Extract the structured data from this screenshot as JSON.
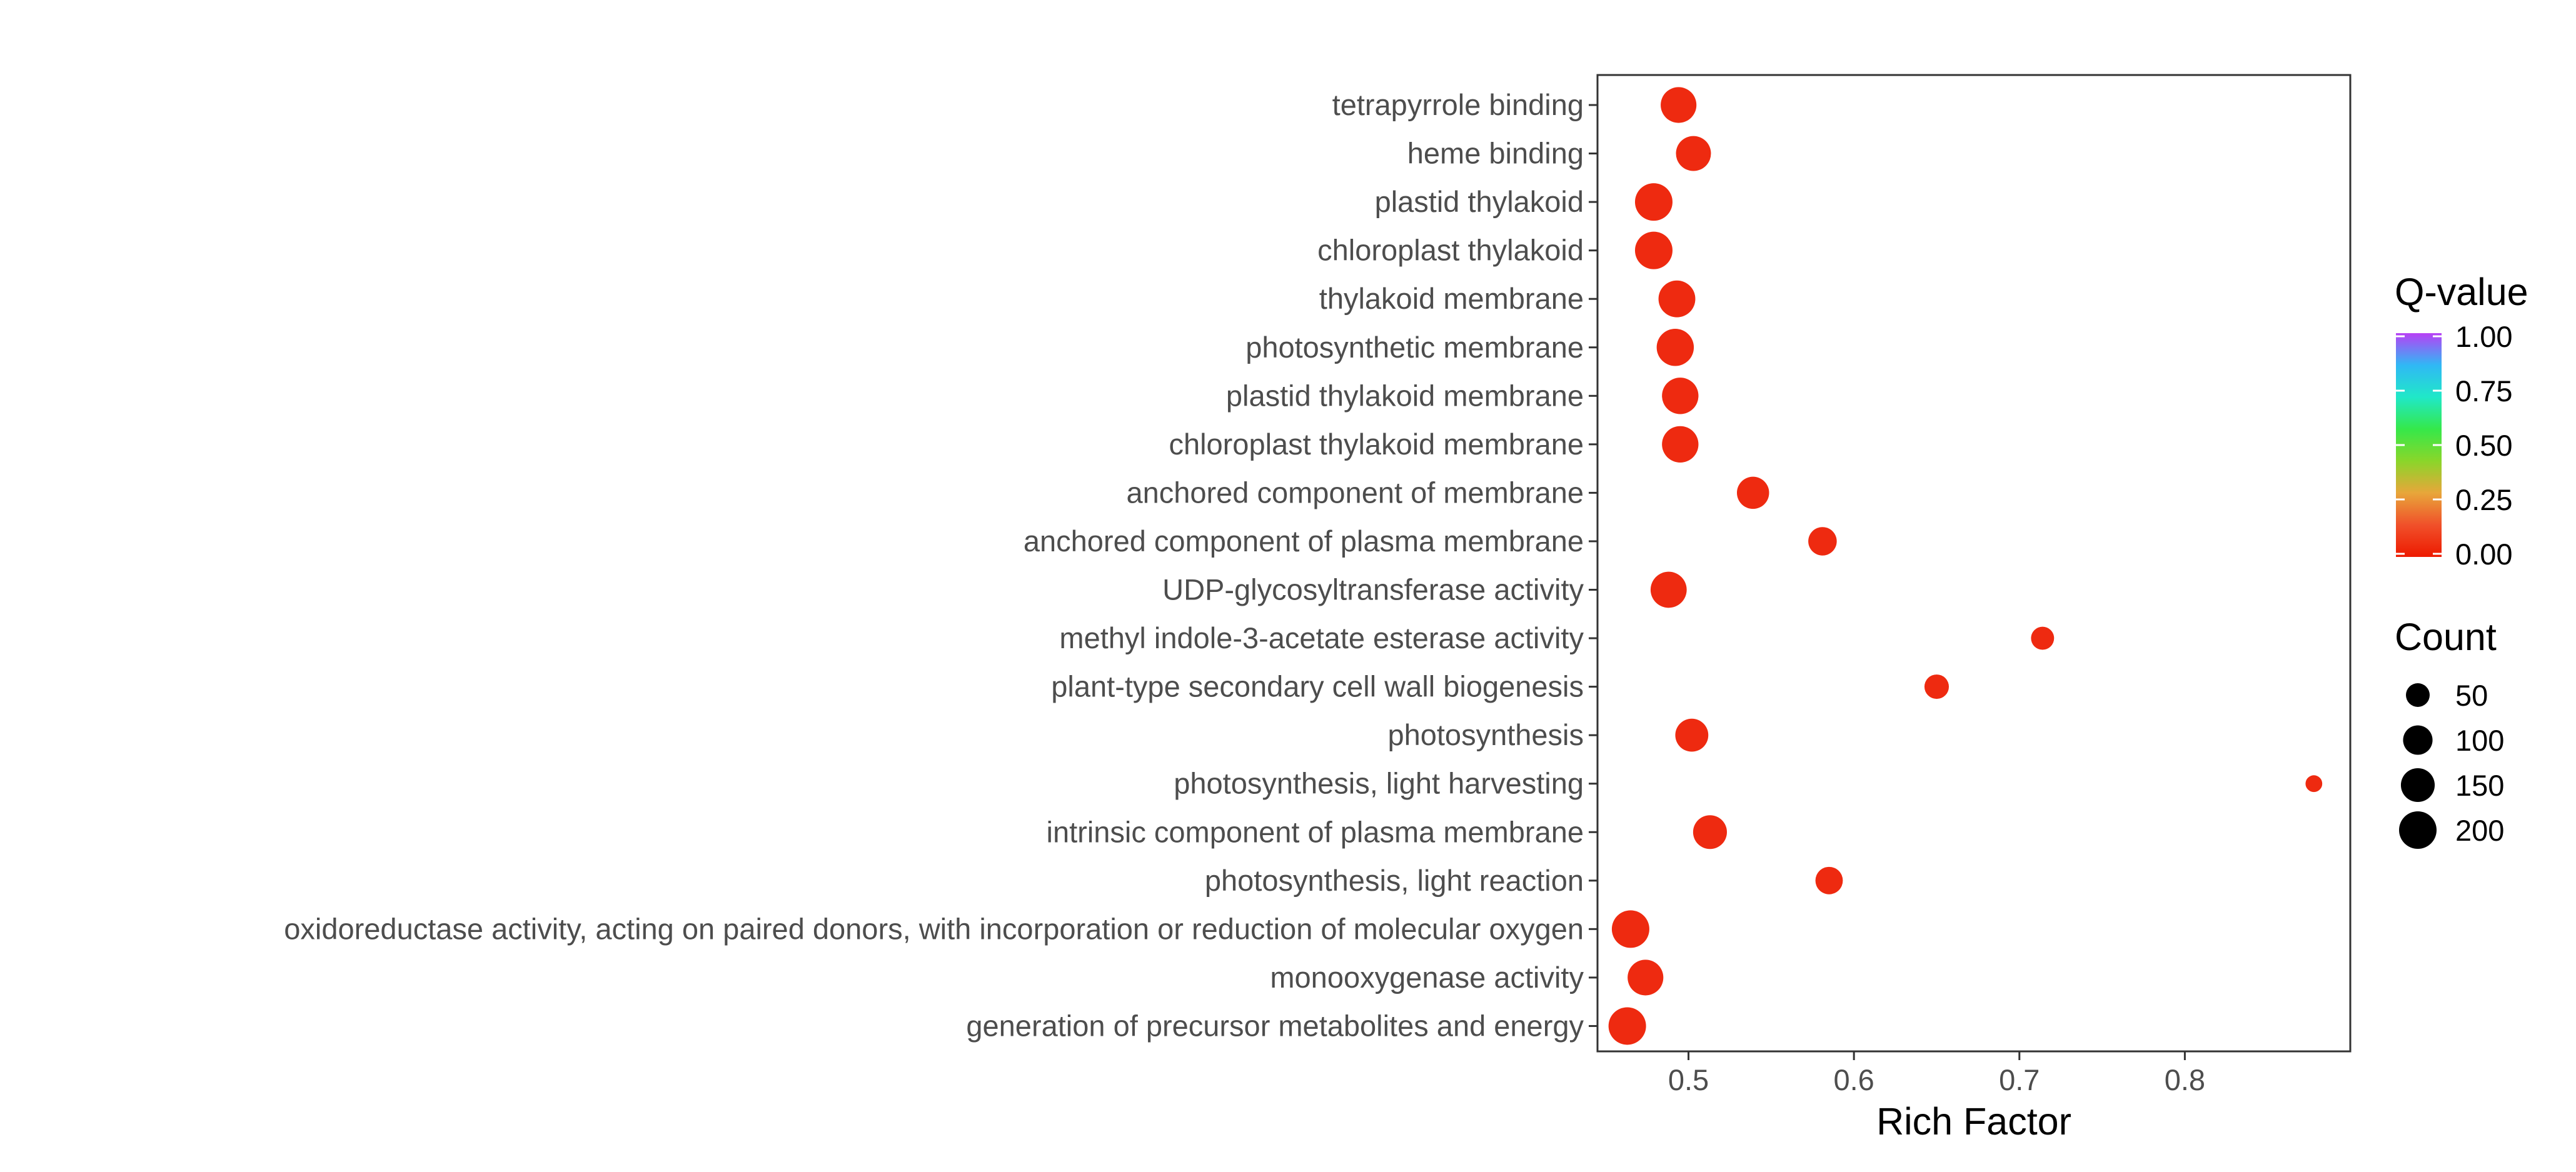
{
  "chart_data": {
    "type": "scatter",
    "title": "",
    "xlabel": "Rich Factor",
    "ylabel": "",
    "xlim": [
      0.445,
      0.9
    ],
    "x_ticks": [
      0.5,
      0.6,
      0.7,
      0.8
    ],
    "grid": false,
    "legend_position": "right",
    "categories": [
      "tetrapyrrole binding",
      "heme binding",
      "plastid thylakoid",
      "chloroplast thylakoid",
      "thylakoid membrane",
      "photosynthetic membrane",
      "plastid thylakoid membrane",
      "chloroplast thylakoid membrane",
      "anchored component of membrane",
      "anchored component of plasma membrane",
      "UDP-glycosyltransferase activity",
      "methyl indole-3-acetate esterase activity",
      "plant-type secondary cell wall biogenesis",
      "photosynthesis",
      "photosynthesis, light harvesting",
      "intrinsic component of plasma membrane",
      "photosynthesis, light reaction",
      "oxidoreductase activity, acting on paired donors, with incorporation or reduction of molecular oxygen",
      "monooxygenase activity",
      "generation of precursor metabolites and energy"
    ],
    "points": [
      {
        "term": "tetrapyrrole binding",
        "rich_factor": 0.494,
        "count": 175,
        "q_value": 0.0
      },
      {
        "term": "heme binding",
        "rich_factor": 0.503,
        "count": 165,
        "q_value": 0.0
      },
      {
        "term": "plastid thylakoid",
        "rich_factor": 0.479,
        "count": 200,
        "q_value": 0.0
      },
      {
        "term": "chloroplast thylakoid",
        "rich_factor": 0.479,
        "count": 200,
        "q_value": 0.0
      },
      {
        "term": "thylakoid membrane",
        "rich_factor": 0.493,
        "count": 190,
        "q_value": 0.0
      },
      {
        "term": "photosynthetic membrane",
        "rich_factor": 0.492,
        "count": 195,
        "q_value": 0.0
      },
      {
        "term": "plastid thylakoid membrane",
        "rich_factor": 0.495,
        "count": 185,
        "q_value": 0.0
      },
      {
        "term": "chloroplast thylakoid membrane",
        "rich_factor": 0.495,
        "count": 185,
        "q_value": 0.0
      },
      {
        "term": "anchored component of membrane",
        "rich_factor": 0.539,
        "count": 130,
        "q_value": 0.0
      },
      {
        "term": "anchored component of plasma membrane",
        "rich_factor": 0.581,
        "count": 90,
        "q_value": 0.0
      },
      {
        "term": "UDP-glycosyltransferase activity",
        "rich_factor": 0.488,
        "count": 180,
        "q_value": 0.0
      },
      {
        "term": "methyl indole-3-acetate esterase activity",
        "rich_factor": 0.714,
        "count": 45,
        "q_value": 0.0
      },
      {
        "term": "plant-type secondary cell wall biogenesis",
        "rich_factor": 0.65,
        "count": 55,
        "q_value": 0.0
      },
      {
        "term": "photosynthesis",
        "rich_factor": 0.502,
        "count": 140,
        "q_value": 0.0
      },
      {
        "term": "photosynthesis, light harvesting",
        "rich_factor": 0.878,
        "count": 12,
        "q_value": 0.0
      },
      {
        "term": "intrinsic component of plasma membrane",
        "rich_factor": 0.513,
        "count": 150,
        "q_value": 0.0
      },
      {
        "term": "photosynthesis, light reaction",
        "rich_factor": 0.585,
        "count": 80,
        "q_value": 0.0
      },
      {
        "term": "oxidoreductase activity, acting on paired donors, with incorporation or reduction of molecular oxygen",
        "rich_factor": 0.465,
        "count": 200,
        "q_value": 0.0
      },
      {
        "term": "monooxygenase activity",
        "rich_factor": 0.474,
        "count": 175,
        "q_value": 0.0
      },
      {
        "term": "generation of precursor metabolites and energy",
        "rich_factor": 0.463,
        "count": 200,
        "q_value": 0.0
      }
    ],
    "color_legend": {
      "title": "Q-value",
      "ticks": [
        "1.00",
        "0.75",
        "0.50",
        "0.25",
        "0.00"
      ],
      "range": [
        0.0,
        1.0
      ],
      "gradient": [
        "#ee1a00",
        "#f0502a",
        "#e8a63a",
        "#8ad62a",
        "#35e84a",
        "#20e8c8",
        "#30b8f5",
        "#b840f5"
      ]
    },
    "size_legend": {
      "title": "Count",
      "values": [
        50,
        100,
        150,
        200
      ]
    },
    "point_color": "#ee2a10"
  }
}
